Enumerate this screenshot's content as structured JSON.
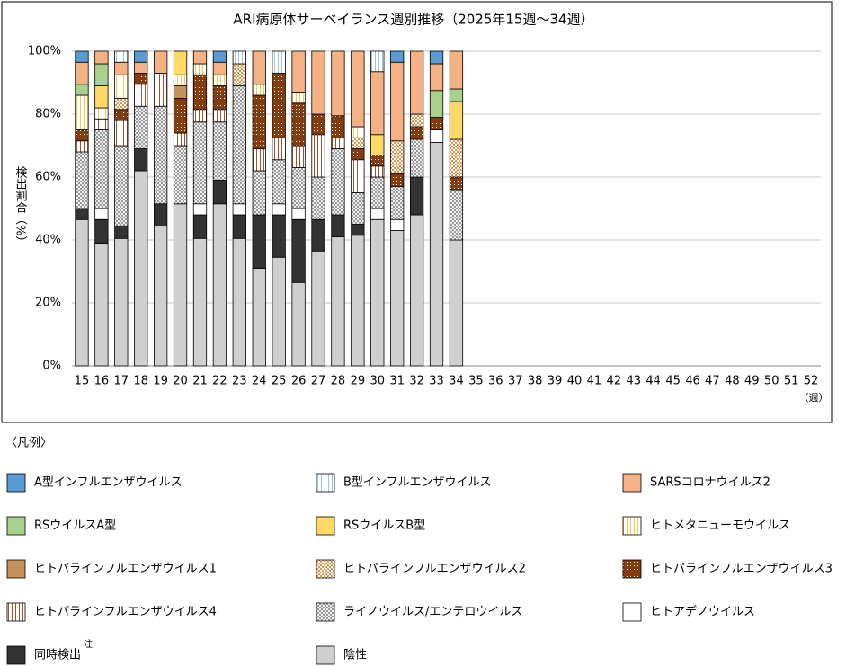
{
  "chart_data": {
    "type": "stacked_bar",
    "title": "ARI病原体サーベイランス週別推移（2025年15週～34週）",
    "y_label": "検出割合（%）",
    "x_label": "（週）",
    "legend_title": "〈凡例〉",
    "legend_note": "注",
    "categories": [
      "15",
      "16",
      "17",
      "18",
      "19",
      "20",
      "21",
      "22",
      "23",
      "24",
      "25",
      "26",
      "27",
      "28",
      "29",
      "30",
      "31",
      "32",
      "33",
      "34",
      "35",
      "36",
      "37",
      "38",
      "39",
      "40",
      "41",
      "42",
      "43",
      "44",
      "45",
      "46",
      "47",
      "48",
      "49",
      "50",
      "51",
      "52"
    ],
    "ylim": [
      0,
      100
    ],
    "yticks": [
      {
        "value": 0,
        "label": "0%"
      },
      {
        "value": 20,
        "label": "20%"
      },
      {
        "value": 40,
        "label": "40%"
      },
      {
        "value": 60,
        "label": "60%"
      },
      {
        "value": 80,
        "label": "80%"
      },
      {
        "value": 100,
        "label": "100%"
      }
    ],
    "grid": true,
    "series": [
      {
        "name": "A型インフルエンザウイルス",
        "color": "#5b9bd5",
        "values": [
          3.5,
          0,
          0,
          3.5,
          0,
          0,
          0,
          3.5,
          0,
          0,
          0,
          0,
          0,
          0,
          0,
          0,
          3.5,
          0,
          4,
          0,
          null,
          null,
          null,
          null,
          null,
          null,
          null,
          null,
          null,
          null,
          null,
          null,
          null,
          null,
          null,
          null,
          null,
          null
        ]
      },
      {
        "name": "B型インフルエンザウイルス",
        "color": "#9dc3e6",
        "pattern": "vstripe",
        "values": [
          0,
          0,
          3.5,
          0,
          0,
          0,
          0,
          0,
          4,
          0,
          7,
          0,
          0,
          0,
          0,
          6.5,
          0,
          0,
          0,
          0,
          null,
          null,
          null,
          null,
          null,
          null,
          null,
          null,
          null,
          null,
          null,
          null,
          null,
          null,
          null,
          null,
          null,
          null
        ]
      },
      {
        "name": "SARSコロナウイルス2",
        "color": "#f4b183",
        "values": [
          7,
          4,
          4,
          3.5,
          7,
          0,
          4,
          4,
          0,
          10.5,
          0,
          13,
          20,
          20.5,
          24,
          20,
          25,
          20,
          8.5,
          12,
          null,
          null,
          null,
          null,
          null,
          null,
          null,
          null,
          null,
          null,
          null,
          null,
          null,
          null,
          null,
          null,
          null,
          null
        ]
      },
      {
        "name": "RSウイルスA型",
        "color": "#a9d18e",
        "values": [
          3.5,
          7,
          0,
          0,
          0,
          0,
          0,
          0,
          0,
          0,
          0,
          0,
          0,
          0,
          0,
          0,
          0,
          0,
          8.5,
          4,
          null,
          null,
          null,
          null,
          null,
          null,
          null,
          null,
          null,
          null,
          null,
          null,
          null,
          null,
          null,
          null,
          null,
          null
        ]
      },
      {
        "name": "RSウイルスB型",
        "color": "#ffd966",
        "values": [
          0,
          7,
          0,
          0,
          0,
          7.5,
          0,
          0,
          0,
          0,
          0,
          0,
          0,
          0,
          0,
          6.5,
          0,
          0,
          0,
          12,
          null,
          null,
          null,
          null,
          null,
          null,
          null,
          null,
          null,
          null,
          null,
          null,
          null,
          null,
          null,
          null,
          null,
          null
        ]
      },
      {
        "name": "ヒトメタニューモウイルス",
        "color": "#f2c94c",
        "pattern": "vstripe",
        "values": [
          11,
          3.5,
          7.5,
          0,
          0,
          3.5,
          3.5,
          3.5,
          0,
          3.5,
          0,
          3.5,
          0,
          0,
          3.5,
          0,
          0,
          0,
          0,
          0,
          null,
          null,
          null,
          null,
          null,
          null,
          null,
          null,
          null,
          null,
          null,
          null,
          null,
          null,
          null,
          null,
          null,
          null
        ]
      },
      {
        "name": "ヒトパラインフルエンザウイルス1",
        "color": "#c5915a",
        "values": [
          0,
          0,
          0,
          0,
          0,
          4,
          0,
          0,
          0,
          0,
          0,
          0,
          0,
          0,
          0,
          0,
          0,
          0,
          0,
          0,
          null,
          null,
          null,
          null,
          null,
          null,
          null,
          null,
          null,
          null,
          null,
          null,
          null,
          null,
          null,
          null,
          null,
          null
        ]
      },
      {
        "name": "ヒトパラインフルエンザウイルス2",
        "color": "#e0964f",
        "pattern": "check",
        "values": [
          0,
          0,
          3.5,
          0,
          0,
          0,
          0,
          0,
          7,
          0,
          0,
          0,
          0,
          0,
          3.5,
          0,
          10.5,
          4,
          0,
          12,
          null,
          null,
          null,
          null,
          null,
          null,
          null,
          null,
          null,
          null,
          null,
          null,
          null,
          null,
          null,
          null,
          null,
          null
        ]
      },
      {
        "name": "ヒトパラインフルエンザウイルス3",
        "color": "#843c0c",
        "pattern": "dots",
        "values": [
          3.5,
          0,
          3.5,
          3.5,
          0,
          11,
          11,
          7.5,
          0,
          17,
          20.5,
          13.5,
          6.5,
          7,
          3.5,
          3.5,
          4,
          4,
          4,
          4,
          null,
          null,
          null,
          null,
          null,
          null,
          null,
          null,
          null,
          null,
          null,
          null,
          null,
          null,
          null,
          null,
          null,
          null
        ]
      },
      {
        "name": "ヒトパラインフルエンザウイルス4",
        "color": "#a0522d",
        "pattern": "vstripe",
        "values": [
          3.5,
          3.5,
          8,
          7,
          10.5,
          4,
          4,
          4,
          0,
          7,
          7,
          7,
          13.5,
          3.5,
          10.5,
          3.5,
          0,
          0,
          0,
          0,
          null,
          null,
          null,
          null,
          null,
          null,
          null,
          null,
          null,
          null,
          null,
          null,
          null,
          null,
          null,
          null,
          null,
          null
        ]
      },
      {
        "name": "ライノウイルス/エンテロウイルス",
        "color": "#777777",
        "pattern": "cross",
        "values": [
          18,
          25,
          25.5,
          13.5,
          31,
          18.5,
          26,
          18.5,
          37.5,
          14,
          14,
          13,
          13.5,
          21,
          10,
          10,
          10.5,
          12,
          0,
          16,
          null,
          null,
          null,
          null,
          null,
          null,
          null,
          null,
          null,
          null,
          null,
          null,
          null,
          null,
          null,
          null,
          null,
          null
        ]
      },
      {
        "name": "ヒトアデノウイルス",
        "color": "#ffffff",
        "values": [
          0,
          3.5,
          0,
          0,
          0,
          0,
          3.5,
          0,
          3.5,
          0,
          3.5,
          3.5,
          0,
          0,
          0,
          3.5,
          3.5,
          0,
          4,
          0,
          null,
          null,
          null,
          null,
          null,
          null,
          null,
          null,
          null,
          null,
          null,
          null,
          null,
          null,
          null,
          null,
          null,
          null
        ]
      },
      {
        "name": "同時検出",
        "color": "#333333",
        "values": [
          3.5,
          7.5,
          4,
          7,
          7,
          0,
          7.5,
          7.5,
          7.5,
          17,
          13.5,
          20,
          10,
          7,
          3.5,
          0,
          0,
          12,
          0,
          0,
          null,
          null,
          null,
          null,
          null,
          null,
          null,
          null,
          null,
          null,
          null,
          null,
          null,
          null,
          null,
          null,
          null,
          null
        ]
      },
      {
        "name": "陰性",
        "color": "#d0cece",
        "values": [
          46.5,
          39,
          40.5,
          62,
          44.5,
          51.5,
          40.5,
          51.5,
          40.5,
          31,
          34.5,
          26.5,
          36.5,
          41,
          41.5,
          46.5,
          43,
          48,
          71,
          40,
          null,
          null,
          null,
          null,
          null,
          null,
          null,
          null,
          null,
          null,
          null,
          null,
          null,
          null,
          null,
          null,
          null,
          null
        ]
      }
    ]
  }
}
